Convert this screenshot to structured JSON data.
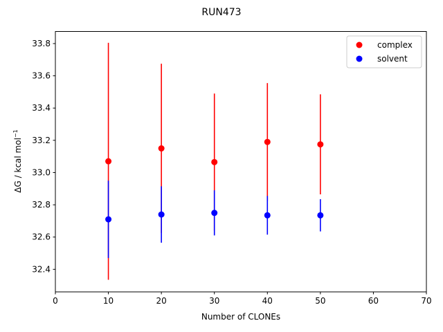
{
  "chart_data": {
    "type": "scatter",
    "title": "RUN473",
    "xlabel": "Number of CLONEs",
    "ylabel_main": "ΔG / kcal mol",
    "ylabel_sup": "−1",
    "xlim": [
      0,
      70
    ],
    "ylim": [
      32.26,
      33.875
    ],
    "xticks": [
      0,
      10,
      20,
      30,
      40,
      50,
      60,
      70
    ],
    "yticks": [
      "32.4",
      "32.6",
      "32.8",
      "33.0",
      "33.2",
      "33.4",
      "33.6",
      "33.8"
    ],
    "grid": false,
    "legend_position": "top-right",
    "series": [
      {
        "name": "complex",
        "color": "#ff0000",
        "points": [
          {
            "x": 10,
            "y": 33.07,
            "err": 0.735
          },
          {
            "x": 20,
            "y": 33.15,
            "err": 0.525
          },
          {
            "x": 30,
            "y": 33.065,
            "err": 0.425
          },
          {
            "x": 40,
            "y": 33.19,
            "err": 0.365
          },
          {
            "x": 50,
            "y": 33.175,
            "err": 0.31
          }
        ]
      },
      {
        "name": "solvent",
        "color": "#0000ff",
        "points": [
          {
            "x": 10,
            "y": 32.71,
            "err": 0.24
          },
          {
            "x": 20,
            "y": 32.74,
            "err": 0.175
          },
          {
            "x": 30,
            "y": 32.75,
            "err": 0.14
          },
          {
            "x": 40,
            "y": 32.735,
            "err": 0.12
          },
          {
            "x": 50,
            "y": 32.735,
            "err": 0.1
          }
        ]
      }
    ]
  }
}
